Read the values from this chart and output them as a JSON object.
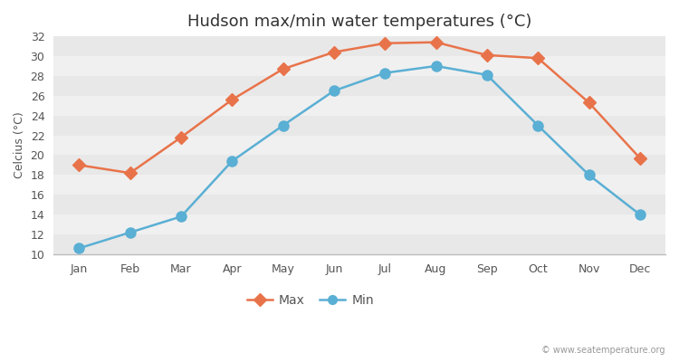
{
  "title": "Hudson max/min water temperatures (°C)",
  "ylabel": "Celcius (°C)",
  "months": [
    "Jan",
    "Feb",
    "Mar",
    "Apr",
    "May",
    "Jun",
    "Jul",
    "Aug",
    "Sep",
    "Oct",
    "Nov",
    "Dec"
  ],
  "max_values": [
    19.0,
    18.2,
    21.8,
    25.6,
    28.7,
    30.4,
    31.3,
    31.4,
    30.1,
    29.8,
    25.3,
    19.7
  ],
  "min_values": [
    10.6,
    12.2,
    13.8,
    19.4,
    23.0,
    26.5,
    28.3,
    29.0,
    28.1,
    23.0,
    18.0,
    14.0
  ],
  "max_color": "#e8734a",
  "min_color": "#5aafd4",
  "figure_bg": "#ffffff",
  "plot_bg": "#f0f0f0",
  "band_color_light": "#e8e8e8",
  "band_color_dark": "#f0f0f0",
  "ylim": [
    10,
    32
  ],
  "yticks": [
    10,
    12,
    14,
    16,
    18,
    20,
    22,
    24,
    26,
    28,
    30,
    32
  ],
  "legend_labels": [
    "Max",
    "Min"
  ],
  "title_fontsize": 13,
  "axis_label_fontsize": 9,
  "tick_fontsize": 9,
  "watermark": "© www.seatemperature.org"
}
